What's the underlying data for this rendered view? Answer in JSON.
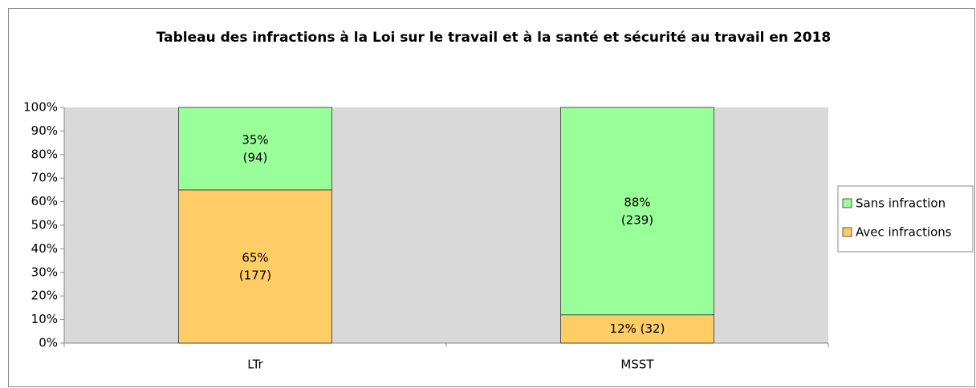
{
  "chart_data": {
    "type": "stacked_bar",
    "title": "Tableau des infractions à la Loi sur le travail et à la santé et sécurité au travail en 2018",
    "categories": [
      "LTr",
      "MSST"
    ],
    "series": [
      {
        "name": "Avec infractions",
        "color": "#ffcc66",
        "values": [
          65,
          12
        ],
        "value_labels": [
          "65% (177)",
          "12% (32)"
        ]
      },
      {
        "name": "Sans infraction",
        "color": "#99ff99",
        "values": [
          35,
          88
        ],
        "value_labels": [
          "35% (94)",
          "88% (239)"
        ]
      }
    ],
    "ylim": [
      0,
      100
    ],
    "yticks": [
      {
        "value": 0,
        "label": "0%"
      },
      {
        "value": 10,
        "label": "10%"
      },
      {
        "value": 20,
        "label": "20%"
      },
      {
        "value": 30,
        "label": "30%"
      },
      {
        "value": 40,
        "label": "40%"
      },
      {
        "value": 50,
        "label": "50%"
      },
      {
        "value": 60,
        "label": "60%"
      },
      {
        "value": 70,
        "label": "70%"
      },
      {
        "value": 80,
        "label": "80%"
      },
      {
        "value": 90,
        "label": "90%"
      },
      {
        "value": 100,
        "label": "100%"
      }
    ],
    "grid": false,
    "legend": "right"
  }
}
